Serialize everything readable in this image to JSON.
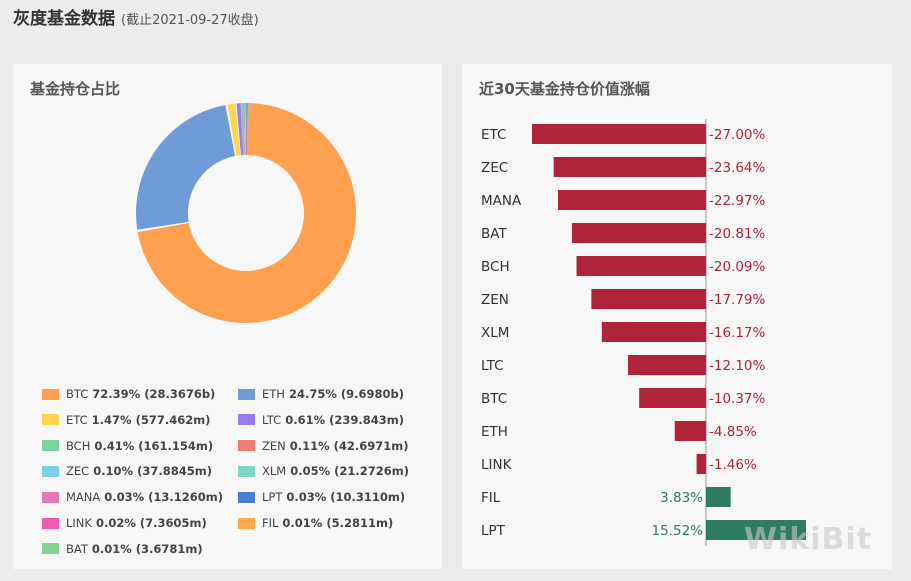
{
  "header": {
    "title": "灰度基金数据",
    "subtitle": "(截止2021-09-27收盘)"
  },
  "left_panel": {
    "title": "基金持仓占比"
  },
  "right_panel": {
    "title": "近30天基金持仓价值涨幅"
  },
  "watermark": "WikiBit",
  "chart_data": [
    {
      "type": "pie",
      "title": "基金持仓占比",
      "donut": true,
      "legend_position": "bottom",
      "slices": [
        {
          "label": "BTC",
          "pct_text": "72.39%",
          "amount": "(28.3676b)",
          "value": 72.39,
          "color": "#ffa050"
        },
        {
          "label": "ETH",
          "pct_text": "24.75%",
          "amount": "(9.6980b)",
          "value": 24.75,
          "color": "#6f9bd8"
        },
        {
          "label": "ETC",
          "pct_text": "1.47%",
          "amount": "(577.462m)",
          "value": 1.47,
          "color": "#ffd54f"
        },
        {
          "label": "LTC",
          "pct_text": "0.61%",
          "amount": "(239.843m)",
          "value": 0.61,
          "color": "#9c7af2"
        },
        {
          "label": "BCH",
          "pct_text": "0.41%",
          "amount": "(161.154m)",
          "value": 0.41,
          "color": "#7fd1a0"
        },
        {
          "label": "ZEN",
          "pct_text": "0.11%",
          "amount": "(42.6971m)",
          "value": 0.11,
          "color": "#f27c6f"
        },
        {
          "label": "ZEC",
          "pct_text": "0.10%",
          "amount": "(37.8845m)",
          "value": 0.1,
          "color": "#7dcfe8"
        },
        {
          "label": "XLM",
          "pct_text": "0.05%",
          "amount": "(21.2726m)",
          "value": 0.05,
          "color": "#7ed6c4"
        },
        {
          "label": "MANA",
          "pct_text": "0.03%",
          "amount": "(13.1260m)",
          "value": 0.03,
          "color": "#e07bb5"
        },
        {
          "label": "LPT",
          "pct_text": "0.03%",
          "amount": "(10.3110m)",
          "value": 0.03,
          "color": "#4a7fd0"
        },
        {
          "label": "LINK",
          "pct_text": "0.02%",
          "amount": "(7.3605m)",
          "value": 0.02,
          "color": "#ee5bb0"
        },
        {
          "label": "FIL",
          "pct_text": "0.01%",
          "amount": "(5.2811m)",
          "value": 0.01,
          "color": "#ffa94d"
        },
        {
          "label": "BAT",
          "pct_text": "0.01%",
          "amount": "(3.6781m)",
          "value": 0.01,
          "color": "#7fd690"
        }
      ]
    },
    {
      "type": "bar",
      "orientation": "horizontal",
      "title": "近30天基金持仓价值涨幅",
      "categories": [
        "ETC",
        "ZEC",
        "MANA",
        "BAT",
        "BCH",
        "ZEN",
        "XLM",
        "LTC",
        "BTC",
        "ETH",
        "LINK",
        "FIL",
        "LPT"
      ],
      "values": [
        -27.0,
        -23.64,
        -22.97,
        -20.81,
        -20.09,
        -17.79,
        -16.17,
        -12.1,
        -10.37,
        -4.85,
        -1.46,
        3.83,
        15.52
      ],
      "labels": [
        "-27.00%",
        "-23.64%",
        "-22.97%",
        "-20.81%",
        "-20.09%",
        "-17.79%",
        "-16.17%",
        "-12.10%",
        "-10.37%",
        "-4.85%",
        "-1.46%",
        "3.83%",
        "15.52%"
      ],
      "xlim": [
        -27,
        26
      ],
      "colors": {
        "negative": "#b0233a",
        "positive": "#2e7d63"
      }
    }
  ]
}
